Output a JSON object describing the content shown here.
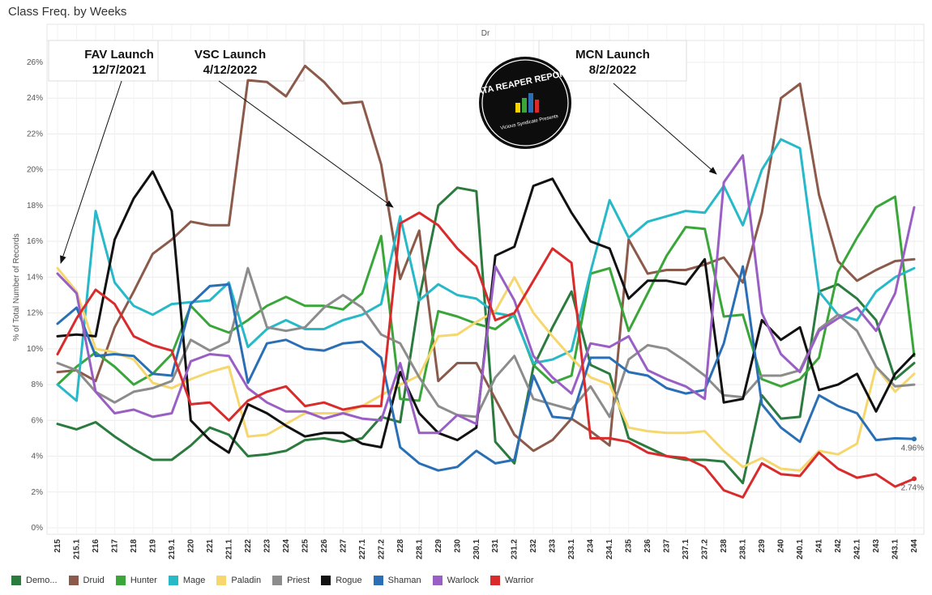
{
  "title": "Class Freq. by Weeks",
  "panel_label": "Dr",
  "logo": {
    "text": "DATA REAPER REPORT",
    "subtext": "Vicious Syndicate Presents"
  },
  "annotations": [
    {
      "line1": "FAV Launch",
      "line2": "12/7/2021"
    },
    {
      "line1": "VSC Launch",
      "line2": "4/12/2022"
    },
    {
      "line1": "MCN Launch",
      "line2": "8/2/2022"
    }
  ],
  "end_labels": [
    {
      "series": "Shaman",
      "text": "4.96%"
    },
    {
      "series": "Warrior",
      "text": "2.74%"
    }
  ],
  "chart_data": {
    "type": "line",
    "ylabel": "% of Total Number of Records",
    "xlabel": "",
    "ylim": [
      0,
      26
    ],
    "yticks": [
      "0%",
      "2%",
      "4%",
      "6%",
      "8%",
      "10%",
      "12%",
      "14%",
      "16%",
      "18%",
      "20%",
      "22%",
      "24%",
      "26%"
    ],
    "grid": true,
    "legend_position": "bottom",
    "categories": [
      "215",
      "215.1",
      "216",
      "217",
      "218",
      "219",
      "219.1",
      "220",
      "221",
      "221.1",
      "222",
      "223",
      "224",
      "225",
      "226",
      "227",
      "227.1",
      "227.2",
      "228",
      "228.1",
      "229",
      "230",
      "230.1",
      "231",
      "231.2",
      "232",
      "233",
      "233.1",
      "234",
      "234.1",
      "235",
      "236",
      "237",
      "237.1",
      "237.2",
      "238",
      "238.1",
      "239",
      "240",
      "240.1",
      "241",
      "242",
      "242.1",
      "243",
      "243.1",
      "244"
    ],
    "series": [
      {
        "name": "Demo...",
        "color": "#2b7a3e",
        "values": [
          5.8,
          5.5,
          5.9,
          5.1,
          4.4,
          3.8,
          3.8,
          4.6,
          5.6,
          5.2,
          4.0,
          4.1,
          4.3,
          4.9,
          5.0,
          4.8,
          5.0,
          6.2,
          5.9,
          12.8,
          18.0,
          19.0,
          18.8,
          4.8,
          3.6,
          9.0,
          11.2,
          13.2,
          9.1,
          8.6,
          5.0,
          4.5,
          4.0,
          3.8,
          3.8,
          3.7,
          2.5,
          7.4,
          6.1,
          6.2,
          13.2,
          13.6,
          12.8,
          11.6,
          8.3,
          9.2
        ]
      },
      {
        "name": "Druid",
        "color": "#8c5a4a",
        "values": [
          8.7,
          8.8,
          8.2,
          11.2,
          13.2,
          15.3,
          16.1,
          17.1,
          16.9,
          16.9,
          25.0,
          24.9,
          24.1,
          25.8,
          24.9,
          23.7,
          23.8,
          20.3,
          13.9,
          16.6,
          8.2,
          9.2,
          9.2,
          7.2,
          5.2,
          4.3,
          4.9,
          6.1,
          5.4,
          4.6,
          16.1,
          14.2,
          14.4,
          14.4,
          14.7,
          15.1,
          13.7,
          17.6,
          24.0,
          24.8,
          18.6,
          14.9,
          13.8,
          14.4,
          14.9,
          15.0
        ]
      },
      {
        "name": "Hunter",
        "color": "#3aa63a",
        "values": [
          8.0,
          9.0,
          9.8,
          9.0,
          8.0,
          8.6,
          9.7,
          12.4,
          11.3,
          10.9,
          11.6,
          12.4,
          12.9,
          12.4,
          12.4,
          12.2,
          13.1,
          16.3,
          7.2,
          7.1,
          12.1,
          11.8,
          11.4,
          11.1,
          11.9,
          9.1,
          8.1,
          8.5,
          14.2,
          14.5,
          11.0,
          13.1,
          15.2,
          16.8,
          16.7,
          11.8,
          11.9,
          8.3,
          7.9,
          8.3,
          9.5,
          14.3,
          16.2,
          17.9,
          18.5,
          9.6
        ]
      },
      {
        "name": "Mage",
        "color": "#27b9c8",
        "values": [
          8.0,
          7.1,
          17.7,
          13.7,
          12.4,
          11.9,
          12.5,
          12.6,
          12.7,
          13.7,
          10.1,
          11.1,
          11.6,
          11.1,
          11.1,
          11.6,
          11.9,
          12.5,
          17.4,
          12.7,
          13.6,
          13.0,
          12.8,
          12.0,
          11.8,
          9.2,
          9.4,
          9.9,
          14.3,
          18.3,
          16.2,
          17.1,
          17.4,
          17.7,
          17.6,
          19.1,
          16.9,
          20.0,
          21.7,
          21.2,
          13.2,
          11.9,
          11.6,
          13.2,
          14.0,
          14.5
        ]
      },
      {
        "name": "Paladin",
        "color": "#f5d76e",
        "values": [
          14.5,
          13.2,
          10.0,
          9.8,
          9.4,
          8.1,
          7.8,
          8.3,
          8.7,
          9.0,
          5.1,
          5.2,
          5.8,
          6.4,
          6.4,
          6.4,
          6.8,
          7.4,
          8.0,
          8.5,
          10.7,
          10.8,
          11.5,
          12.1,
          14.0,
          12.0,
          10.7,
          9.5,
          8.4,
          8.0,
          5.6,
          5.4,
          5.3,
          5.3,
          5.4,
          4.3,
          3.4,
          3.9,
          3.3,
          3.2,
          4.3,
          4.1,
          4.7,
          9.0,
          7.6,
          8.6
        ]
      },
      {
        "name": "Priest",
        "color": "#8c8c8c",
        "values": [
          9.2,
          8.8,
          7.6,
          7.0,
          7.6,
          7.8,
          8.2,
          10.5,
          9.9,
          10.4,
          14.5,
          11.2,
          11.0,
          11.2,
          12.3,
          13.0,
          12.3,
          10.8,
          10.3,
          8.4,
          6.8,
          6.3,
          6.2,
          8.4,
          9.6,
          7.2,
          6.9,
          6.6,
          7.9,
          6.2,
          9.4,
          10.2,
          10.0,
          9.3,
          8.5,
          7.4,
          7.3,
          8.5,
          8.5,
          8.8,
          11.1,
          11.9,
          11.0,
          9.0,
          7.9,
          8.0
        ]
      },
      {
        "name": "Rogue",
        "color": "#111111",
        "values": [
          10.7,
          10.8,
          10.7,
          16.1,
          18.4,
          19.9,
          17.7,
          6.0,
          4.9,
          4.2,
          6.9,
          6.4,
          5.7,
          5.1,
          5.3,
          5.3,
          4.7,
          4.5,
          8.7,
          6.4,
          5.3,
          4.9,
          5.6,
          15.2,
          15.7,
          19.1,
          19.5,
          17.6,
          16.0,
          15.6,
          12.8,
          13.8,
          13.8,
          13.6,
          15.0,
          7.0,
          7.2,
          11.6,
          10.5,
          11.2,
          7.7,
          8.0,
          8.6,
          6.5,
          8.6,
          9.7
        ]
      },
      {
        "name": "Shaman",
        "color": "#2a6fb5",
        "values": [
          11.4,
          12.3,
          9.6,
          9.7,
          9.6,
          8.6,
          8.5,
          12.5,
          13.5,
          13.6,
          8.1,
          10.3,
          10.5,
          10.0,
          9.9,
          10.3,
          10.4,
          9.5,
          4.5,
          3.6,
          3.2,
          3.4,
          4.3,
          3.6,
          3.8,
          8.5,
          6.2,
          6.1,
          9.5,
          9.5,
          8.7,
          8.5,
          7.8,
          7.5,
          7.7,
          10.3,
          14.6,
          6.9,
          5.6,
          4.8,
          7.4,
          6.8,
          6.4,
          4.9,
          5.0,
          4.96
        ]
      },
      {
        "name": "Warlock",
        "color": "#9a5fc4",
        "values": [
          14.2,
          13.1,
          7.6,
          6.4,
          6.6,
          6.2,
          6.4,
          9.3,
          9.7,
          9.6,
          7.8,
          7.0,
          6.5,
          6.5,
          6.1,
          6.4,
          6.1,
          6.0,
          9.2,
          5.3,
          5.3,
          6.3,
          5.8,
          14.6,
          12.7,
          9.6,
          8.4,
          7.5,
          10.3,
          10.1,
          10.7,
          8.8,
          8.3,
          7.9,
          7.2,
          19.3,
          20.8,
          12.0,
          9.7,
          8.7,
          11.0,
          11.7,
          12.3,
          11.0,
          13.1,
          17.9
        ]
      },
      {
        "name": "Warrior",
        "color": "#d92b2b",
        "values": [
          9.7,
          11.7,
          13.3,
          12.5,
          10.7,
          10.2,
          9.9,
          6.9,
          7.0,
          6.0,
          7.1,
          7.6,
          7.9,
          6.8,
          7.0,
          6.6,
          6.8,
          6.8,
          17.0,
          17.6,
          16.9,
          15.6,
          14.6,
          11.6,
          12.0,
          13.8,
          15.6,
          14.8,
          5.0,
          5.0,
          4.8,
          4.2,
          4.0,
          3.9,
          3.4,
          2.1,
          1.7,
          3.6,
          3.0,
          2.9,
          4.2,
          3.3,
          2.8,
          3.0,
          2.3,
          2.74
        ]
      }
    ]
  }
}
